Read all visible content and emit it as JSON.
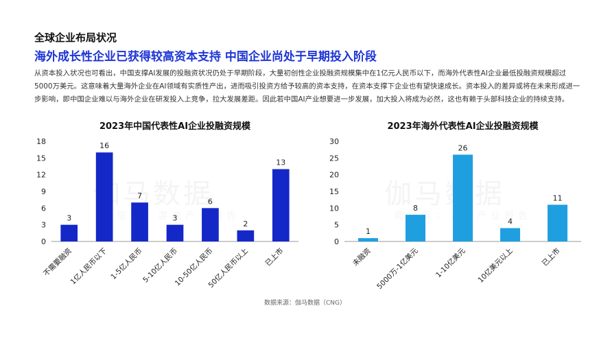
{
  "header": {
    "kicker": "全球企业布局状况",
    "headline": "海外成长性企业已获得较高资本支持 中国企业尚处于早期投入阶段"
  },
  "intro": "从资本投入状况也可看出，中国支撑AI发展的投融资状况仍处于早期阶段，大量初创性企业投融资规模集中在1亿元人民币以下，而海外代表性AI企业最低投融资规模超过5000万美元。这意味着大量海外企业在AI领域有实质性产出，进而吸引投资方给予较高的资本支持，在资本支撑下企业也有望快速成长。资本投入的差异或将在未来形成进一步影响，即中国企业难以与海外企业在研发投入上竞争，拉大发展差距。因此若中国AI产业想要进一步发展，加大投入将成为必然，这也有赖于头部科技企业的持续支持。",
  "watermark": {
    "main": "伽马数据",
    "sub": "微信号：游戏产业报告"
  },
  "source": "数据来源：伽马数据（CNG）",
  "colors": {
    "left_bar": "#1428c8",
    "right_bar": "#1f9fe0",
    "headline": "#1e35d6"
  },
  "chart_data": [
    {
      "type": "bar",
      "title": "2023年中国代表性AI企业投融资规模",
      "categories": [
        "不需要融资",
        "1亿人民币以下",
        "1-5亿人民币",
        "5-10亿人民币",
        "10-50亿人民币",
        "50亿人民币以上",
        "已上市"
      ],
      "values": [
        3,
        16,
        7,
        3,
        6,
        2,
        13
      ],
      "ylim": [
        0,
        18
      ],
      "yticks": [
        0,
        3,
        6,
        9,
        12,
        15,
        18
      ],
      "xlabel": "",
      "ylabel": "",
      "grid": false,
      "color": "#1428c8"
    },
    {
      "type": "bar",
      "title": "2023年海外代表性AI企业投融资规模",
      "categories": [
        "未融资",
        "5000万-1亿美元",
        "1-10亿美元",
        "10亿美元以上",
        "已上市"
      ],
      "values": [
        1,
        8,
        26,
        4,
        11
      ],
      "ylim": [
        0,
        30
      ],
      "yticks": [
        0,
        5,
        10,
        15,
        20,
        25,
        30
      ],
      "xlabel": "",
      "ylabel": "",
      "grid": false,
      "color": "#1f9fe0"
    }
  ]
}
